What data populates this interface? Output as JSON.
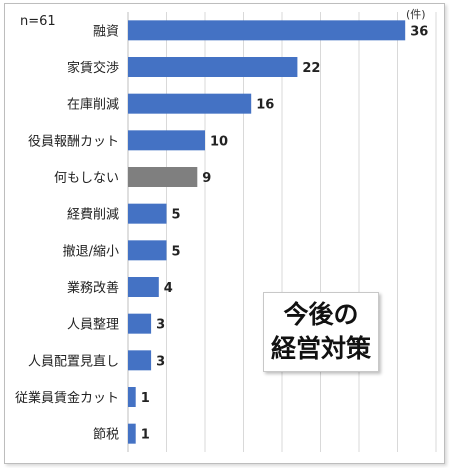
{
  "chart_data": {
    "type": "bar",
    "orientation": "horizontal",
    "sample_size_label": "n=61",
    "unit_label": "(件)",
    "title_line1": "今後の",
    "title_line2": "経営対策",
    "categories": [
      "融資",
      "家賃交渉",
      "在庫削減",
      "役員報酬カット",
      "何もしない",
      "経費削減",
      "撤退/縮小",
      "業務改善",
      "人員整理",
      "人員配置見直し",
      "従業員賃金カット",
      "節税"
    ],
    "values": [
      36,
      22,
      16,
      10,
      9,
      5,
      5,
      4,
      3,
      3,
      1,
      1
    ],
    "bar_colors": [
      "#4472c4",
      "#4472c4",
      "#4472c4",
      "#4472c4",
      "#7f7f7f",
      "#4472c4",
      "#4472c4",
      "#4472c4",
      "#4472c4",
      "#4472c4",
      "#4472c4",
      "#4472c4"
    ],
    "xlim": [
      0,
      40
    ],
    "x_gridlines": [
      0,
      5,
      10,
      15,
      20,
      25,
      30,
      35,
      40
    ],
    "grid": true,
    "legend": "none"
  }
}
